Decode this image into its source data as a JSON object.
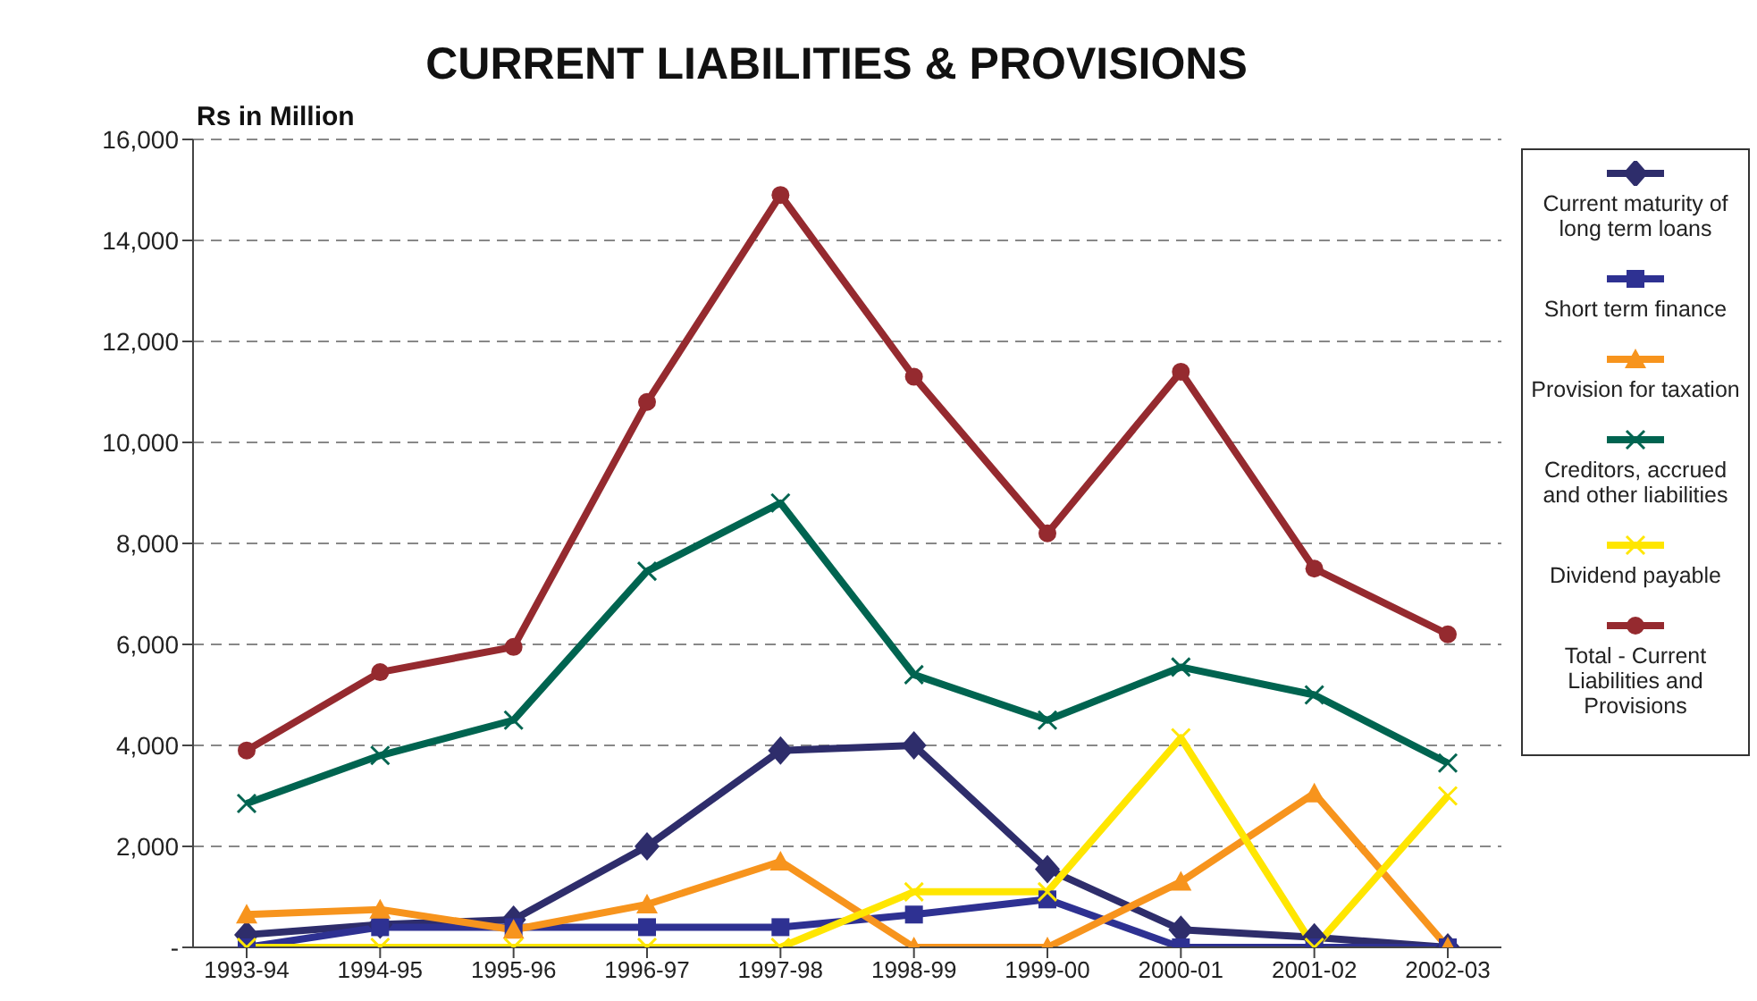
{
  "chart_data": {
    "type": "line",
    "title": "CURRENT LIABILITIES & PROVISIONS",
    "ylabel": "Rs in Million",
    "categories": [
      "1993-94",
      "1994-95",
      "1995-96",
      "1996-97",
      "1997-98",
      "1998-99",
      "1999-00",
      "2000-01",
      "2001-02",
      "2002-03"
    ],
    "series": [
      {
        "name": "Current maturity of long term loans",
        "color": "#2e2d6b",
        "marker": "diamond",
        "values": [
          250,
          450,
          550,
          2000,
          3900,
          4000,
          1550,
          350,
          200,
          0
        ]
      },
      {
        "name": "Short term finance",
        "color": "#2e3192",
        "marker": "square",
        "values": [
          0,
          400,
          400,
          400,
          400,
          650,
          950,
          0,
          0,
          0
        ]
      },
      {
        "name": "Provision for taxation",
        "color": "#f7941d",
        "marker": "triangle",
        "values": [
          650,
          750,
          350,
          850,
          1700,
          0,
          0,
          1300,
          3050,
          0
        ]
      },
      {
        "name": "Creditors, accrued and other liabilities",
        "color": "#006450",
        "marker": "cross",
        "values": [
          2850,
          3800,
          4500,
          7450,
          8800,
          5400,
          4500,
          5550,
          5000,
          3650
        ]
      },
      {
        "name": "Dividend payable",
        "color": "#ffe600",
        "marker": "cross",
        "values": [
          0,
          0,
          0,
          0,
          0,
          1100,
          1100,
          4150,
          0,
          3000
        ]
      },
      {
        "name": "Total - Current Liabilities and Provisions",
        "color": "#952a2f",
        "marker": "circle",
        "values": [
          3900,
          5450,
          5950,
          10800,
          14900,
          11300,
          8200,
          11400,
          7500,
          6200
        ]
      }
    ],
    "ylim": [
      0,
      16000
    ],
    "yticks": [
      {
        "value": 0,
        "label": "-"
      },
      {
        "value": 2000,
        "label": "2,000"
      },
      {
        "value": 4000,
        "label": "4,000"
      },
      {
        "value": 6000,
        "label": "6,000"
      },
      {
        "value": 8000,
        "label": "8,000"
      },
      {
        "value": 10000,
        "label": "10,000"
      },
      {
        "value": 12000,
        "label": "12,000"
      },
      {
        "value": 14000,
        "label": "14,000"
      },
      {
        "value": 16000,
        "label": "16,000"
      }
    ],
    "grid": "y",
    "legend": "right",
    "line_style": "solid"
  }
}
